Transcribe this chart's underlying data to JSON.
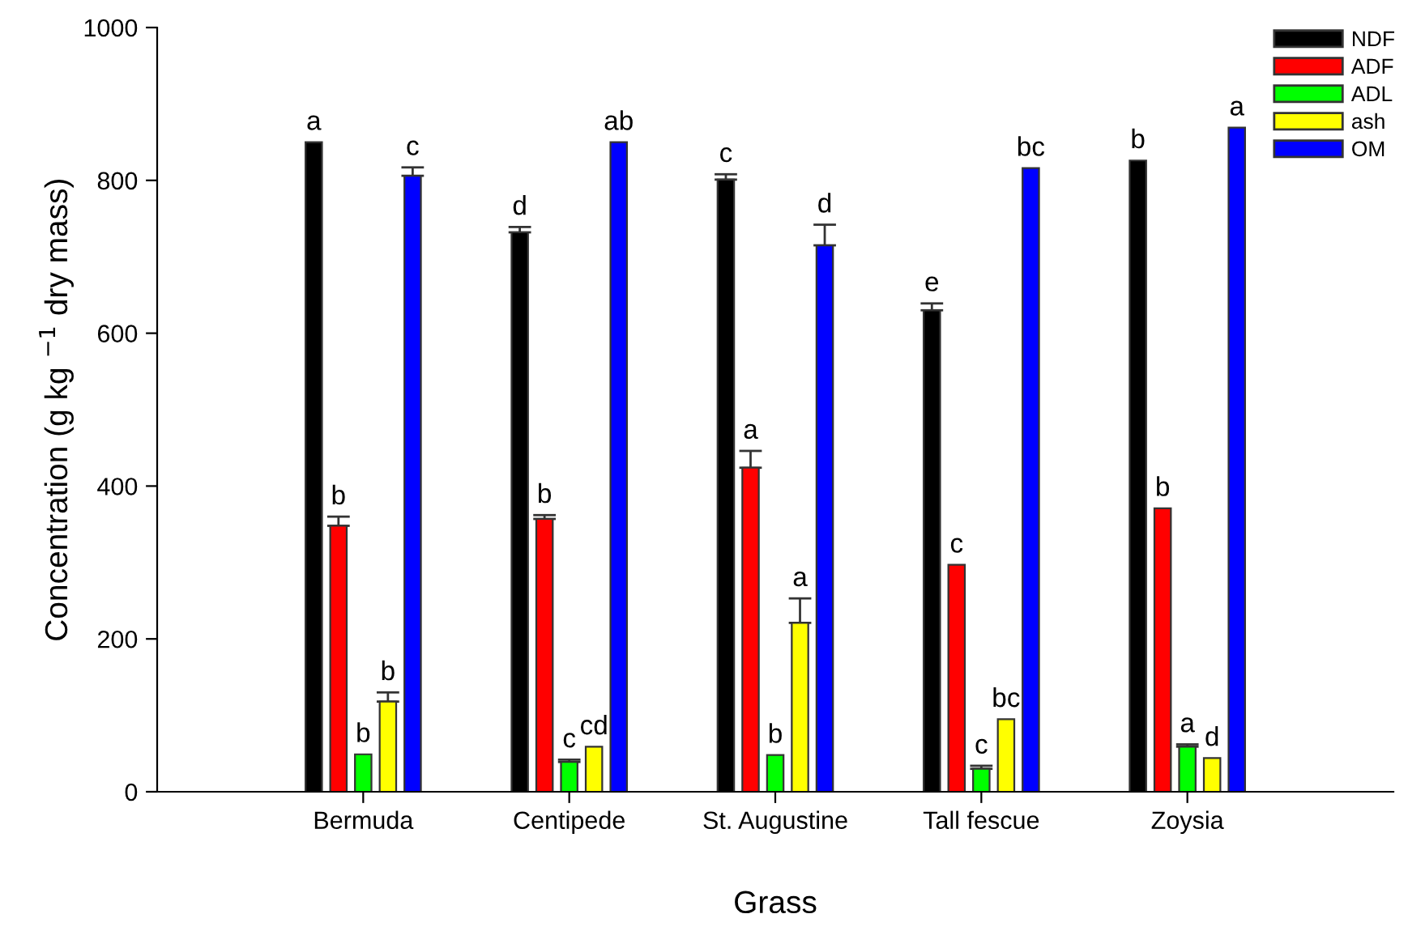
{
  "chart_data": {
    "type": "bar",
    "xlabel": "Grass",
    "ylabel": "Concentration (g kg $^{−1}$ dry mass)",
    "categories": [
      "Bermuda",
      "Centipede",
      "St. Augustine",
      "Tall fescue",
      "Zoysia"
    ],
    "series": [
      {
        "name": "NDF",
        "color": "#000000",
        "values": [
          850,
          732,
          801,
          630,
          826
        ],
        "errors": [
          null,
          [
            732,
            739
          ],
          [
            801,
            808
          ],
          [
            630,
            639
          ],
          null
        ],
        "value_labels": [
          "a",
          "d",
          "c",
          "e",
          "b"
        ]
      },
      {
        "name": "ADF",
        "color": "#ff0000",
        "values": [
          348,
          357,
          424,
          297,
          371
        ],
        "errors": [
          [
            348,
            360
          ],
          [
            357,
            362
          ],
          [
            424,
            446
          ],
          null,
          null
        ],
        "value_labels": [
          "b",
          "b",
          "a",
          "c",
          "b"
        ]
      },
      {
        "name": "ADL",
        "color": "#00ff00",
        "values": [
          49,
          39,
          48,
          30,
          59
        ],
        "errors": [
          null,
          [
            39,
            42
          ],
          null,
          [
            30,
            34
          ],
          [
            59,
            62
          ]
        ],
        "value_labels": [
          "b",
          "c",
          "b",
          "c",
          "a"
        ]
      },
      {
        "name": "ash",
        "color": "#ffff00",
        "values": [
          118,
          59,
          221,
          95,
          44
        ],
        "errors": [
          [
            118,
            130
          ],
          null,
          [
            221,
            253
          ],
          null,
          null
        ],
        "value_labels": [
          "b",
          "cd",
          "a",
          "bc",
          "d"
        ]
      },
      {
        "name": "OM",
        "color": "#0000ff",
        "values": [
          806,
          850,
          715,
          816,
          869
        ],
        "errors": [
          [
            806,
            817
          ],
          null,
          [
            715,
            742
          ],
          null,
          null
        ],
        "value_labels": [
          "c",
          "ab",
          "d",
          "bc",
          "a"
        ]
      }
    ],
    "ylim": [
      0,
      1000
    ],
    "yticks": [
      0,
      200,
      400,
      600,
      800,
      1000
    ],
    "legend": "top right"
  }
}
